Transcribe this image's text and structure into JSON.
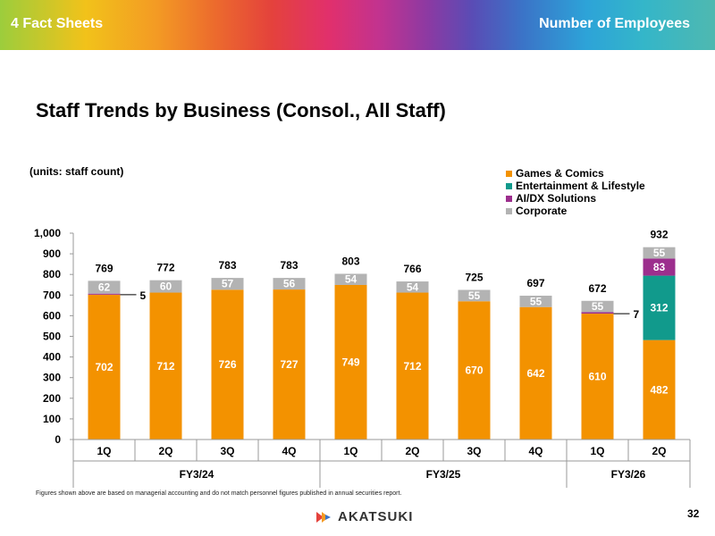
{
  "header": {
    "section": "4   Fact Sheets",
    "topic": "Number of Employees"
  },
  "title": "Staff Trends by Business (Consol., All Staff)",
  "units": "(units: staff count)",
  "footnote": "Figures shown above are based on managerial accounting and do not match personnel figures published in annual securities report.",
  "logo_text": "AKATSUKI",
  "page_number": "32",
  "colors": {
    "games": "#f39200",
    "entertainment": "#119a8c",
    "aidx": "#9c2e8d",
    "corporate": "#b3b3b3"
  },
  "chart_data": {
    "type": "bar",
    "stacked": true,
    "title": "Staff Trends by Business (Consol., All Staff)",
    "ylabel": "staff count",
    "ylim": [
      0,
      1000
    ],
    "yticks": [
      0,
      100,
      200,
      300,
      400,
      500,
      600,
      700,
      800,
      900,
      1000
    ],
    "ytick_labels": [
      "0",
      "100",
      "200",
      "300",
      "400",
      "500",
      "600",
      "700",
      "800",
      "900",
      "1,000"
    ],
    "legend_position": "top-right",
    "categories": [
      "1Q",
      "2Q",
      "3Q",
      "4Q",
      "1Q",
      "2Q",
      "3Q",
      "4Q",
      "1Q",
      "2Q"
    ],
    "groups": [
      {
        "label": "FY3/24",
        "start": 0,
        "end": 3
      },
      {
        "label": "FY3/25",
        "start": 4,
        "end": 7
      },
      {
        "label": "FY3/26",
        "start": 8,
        "end": 9
      }
    ],
    "series": [
      {
        "name": "Games & Comics",
        "key": "games",
        "values": [
          702,
          712,
          726,
          727,
          749,
          712,
          670,
          642,
          610,
          482
        ]
      },
      {
        "name": "Entertainment & Lifestyle",
        "key": "entertainment",
        "values": [
          0,
          0,
          0,
          0,
          0,
          0,
          0,
          0,
          0,
          312
        ]
      },
      {
        "name": "AI/DX Solutions",
        "key": "aidx",
        "values": [
          5,
          0,
          0,
          0,
          0,
          0,
          0,
          0,
          7,
          83
        ]
      },
      {
        "name": "Corporate",
        "key": "corporate",
        "values": [
          62,
          60,
          57,
          56,
          54,
          54,
          55,
          55,
          55,
          55
        ]
      }
    ],
    "totals": [
      769,
      772,
      783,
      783,
      803,
      766,
      725,
      697,
      672,
      932
    ],
    "callouts": [
      {
        "index": 0,
        "series": "AI/DX Solutions",
        "value": 5
      },
      {
        "index": 8,
        "series": "AI/DX Solutions",
        "value": 7
      }
    ]
  }
}
